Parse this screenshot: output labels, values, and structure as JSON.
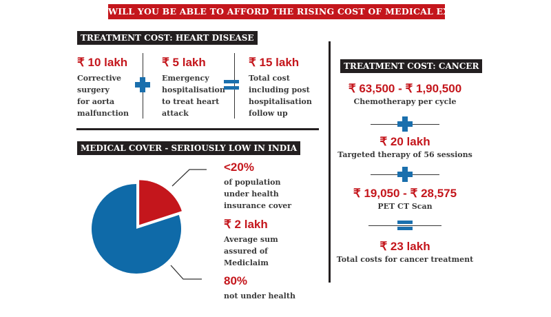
{
  "title": "WILL YOU BE ABLE TO AFFORD THE RISING COST OF MEDICAL EXPENSES",
  "heart": {
    "header": "TREATMENT COST: HEART DISEASE",
    "items": [
      {
        "amount": "₹ 10 lakh",
        "lines": [
          "Corrective",
          "surgery",
          "for aorta",
          "malfunction"
        ]
      },
      {
        "amount": "₹ 5 lakh",
        "lines": [
          "Emergency",
          "hospitalisation",
          "to treat heart",
          "attack"
        ]
      },
      {
        "amount": "₹ 15 lakh",
        "lines": [
          "Total cost",
          "including post",
          "hospitalisation",
          "follow up"
        ]
      }
    ],
    "operators": [
      "plus-icon",
      "equals-icon"
    ]
  },
  "cover": {
    "header": "MEDICAL COVER - SERIOUSLY LOW IN INDIA",
    "pie": {
      "covered_percent": 20,
      "not_covered_percent": 80,
      "colors": {
        "covered": "#c4161c",
        "not_covered": "#0f6aa8"
      }
    },
    "stats": [
      {
        "value": "<20%",
        "lines": [
          "of population",
          "under health",
          "insurance cover"
        ]
      },
      {
        "value": "₹ 2 lakh",
        "lines": [
          "Average sum",
          "assured of",
          "Mediclaim"
        ]
      },
      {
        "value": "80%",
        "lines": [
          "not under health"
        ]
      }
    ]
  },
  "cancer": {
    "header": "TREATMENT COST: CANCER",
    "items": [
      {
        "amount": "₹ 63,500 - ₹ 1,90,500",
        "label": "Chemotherapy per cycle"
      },
      {
        "amount": "₹ 20 lakh",
        "label": "Targeted therapy of 56 sessions"
      },
      {
        "amount": "₹ 19,050 - ₹ 28,575",
        "label": "PET CT Scan"
      },
      {
        "amount": "₹ 23 lakh",
        "label": "Total costs for cancer treatment"
      }
    ]
  },
  "colors": {
    "accent_red": "#c4161c",
    "accent_blue": "#1a6fad",
    "header_bg": "#231f20"
  }
}
